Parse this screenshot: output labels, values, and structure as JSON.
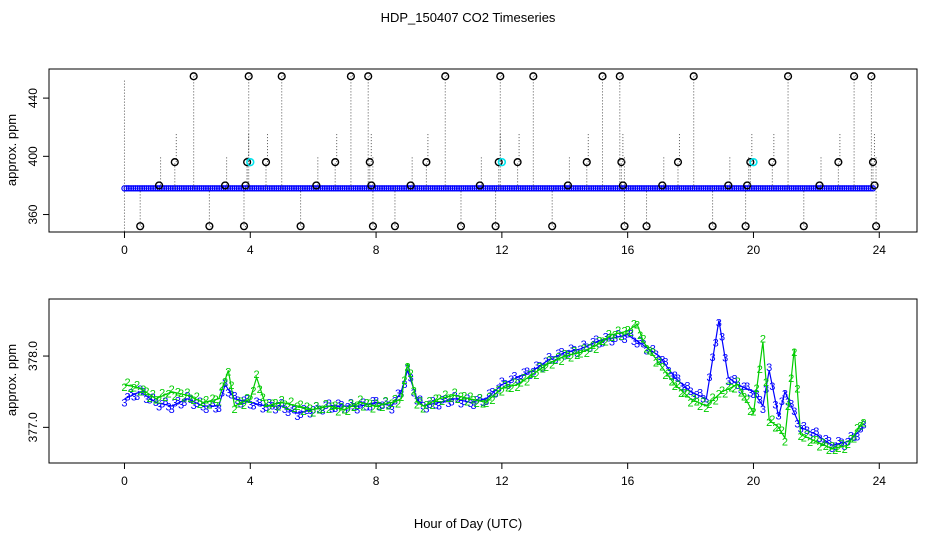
{
  "title": "HDP_150407  CO2 Timeseries",
  "xlabel": "Hour of Day (UTC)",
  "colors": {
    "blue": "#0000ff",
    "green": "#00cc00",
    "cyan": "#00e5ee",
    "black": "#000000",
    "dotted": "#555555"
  },
  "chart_data": [
    {
      "type": "scatter",
      "title": "HDP_150407  CO2 Timeseries",
      "ylabel": "approx. ppm",
      "xlim": [
        -2.4,
        25.2
      ],
      "ylim": [
        348,
        460
      ],
      "xticks": [
        0,
        4,
        8,
        12,
        16,
        20,
        24
      ],
      "yticks": [
        360,
        400,
        440
      ],
      "baseline": 378,
      "baseline_range": [
        0,
        23.8
      ],
      "outliers": [
        {
          "x": 0.5,
          "y": 352
        },
        {
          "x": 1.1,
          "y": 380
        },
        {
          "x": 1.6,
          "y": 396
        },
        {
          "x": 2.2,
          "y": 455
        },
        {
          "x": 2.7,
          "y": 352
        },
        {
          "x": 3.2,
          "y": 380
        },
        {
          "x": 3.8,
          "y": 352
        },
        {
          "x": 3.85,
          "y": 380
        },
        {
          "x": 3.9,
          "y": 396
        },
        {
          "x": 3.95,
          "y": 455
        },
        {
          "x": 4.5,
          "y": 396
        },
        {
          "x": 5.0,
          "y": 455
        },
        {
          "x": 5.6,
          "y": 352
        },
        {
          "x": 6.1,
          "y": 380
        },
        {
          "x": 6.7,
          "y": 396
        },
        {
          "x": 7.2,
          "y": 455
        },
        {
          "x": 7.75,
          "y": 455
        },
        {
          "x": 7.8,
          "y": 396
        },
        {
          "x": 7.85,
          "y": 380
        },
        {
          "x": 7.9,
          "y": 352
        },
        {
          "x": 8.6,
          "y": 352
        },
        {
          "x": 9.1,
          "y": 380
        },
        {
          "x": 9.6,
          "y": 396
        },
        {
          "x": 10.2,
          "y": 455
        },
        {
          "x": 10.7,
          "y": 352
        },
        {
          "x": 11.3,
          "y": 380
        },
        {
          "x": 11.8,
          "y": 352
        },
        {
          "x": 11.9,
          "y": 396
        },
        {
          "x": 11.95,
          "y": 455
        },
        {
          "x": 12.5,
          "y": 396
        },
        {
          "x": 13.0,
          "y": 455
        },
        {
          "x": 13.6,
          "y": 352
        },
        {
          "x": 14.1,
          "y": 380
        },
        {
          "x": 14.7,
          "y": 396
        },
        {
          "x": 15.2,
          "y": 455
        },
        {
          "x": 15.75,
          "y": 455
        },
        {
          "x": 15.8,
          "y": 396
        },
        {
          "x": 15.85,
          "y": 380
        },
        {
          "x": 15.9,
          "y": 352
        },
        {
          "x": 16.6,
          "y": 352
        },
        {
          "x": 17.1,
          "y": 380
        },
        {
          "x": 17.6,
          "y": 396
        },
        {
          "x": 18.1,
          "y": 455
        },
        {
          "x": 18.7,
          "y": 352
        },
        {
          "x": 19.2,
          "y": 380
        },
        {
          "x": 19.75,
          "y": 352
        },
        {
          "x": 19.8,
          "y": 380
        },
        {
          "x": 19.9,
          "y": 396
        },
        {
          "x": 20.6,
          "y": 396
        },
        {
          "x": 21.1,
          "y": 455
        },
        {
          "x": 21.6,
          "y": 352
        },
        {
          "x": 22.1,
          "y": 380
        },
        {
          "x": 22.7,
          "y": 396
        },
        {
          "x": 23.2,
          "y": 455
        },
        {
          "x": 23.75,
          "y": 455
        },
        {
          "x": 23.8,
          "y": 396
        },
        {
          "x": 23.85,
          "y": 380
        },
        {
          "x": 23.9,
          "y": 352
        }
      ],
      "cyan_points": [
        {
          "x": 4.0,
          "y": 396
        },
        {
          "x": 12.0,
          "y": 396
        },
        {
          "x": 20.0,
          "y": 396
        }
      ]
    },
    {
      "type": "scatter",
      "ylabel": "approx. ppm",
      "xlim": [
        -2.4,
        25.2
      ],
      "ylim": [
        376.5,
        378.8
      ],
      "xticks": [
        0,
        4,
        8,
        12,
        16,
        20,
        24
      ],
      "yticks": [
        377.0,
        378.0
      ],
      "series": [
        {
          "name": "3",
          "color": "#0000ff",
          "x": [
            0,
            0.5,
            1,
            1.5,
            2,
            2.5,
            3,
            3.2,
            3.5,
            4,
            4.5,
            5,
            5.5,
            6,
            6.5,
            7,
            7.5,
            8,
            8.5,
            8.8,
            9,
            9.3,
            9.5,
            10,
            10.5,
            11,
            11.5,
            12,
            12.5,
            13,
            13.5,
            14,
            14.5,
            15,
            15.5,
            16,
            16.5,
            17,
            17.5,
            18,
            18.5,
            18.9,
            19.2,
            19.5,
            20,
            20.3,
            20.5,
            20.8,
            21,
            21.5,
            22,
            22.5,
            23,
            23.5
          ],
          "values": [
            377.4,
            377.5,
            377.35,
            377.3,
            377.4,
            377.3,
            377.3,
            377.6,
            377.4,
            377.35,
            377.3,
            377.3,
            377.2,
            377.25,
            377.3,
            377.3,
            377.3,
            377.35,
            377.3,
            377.5,
            377.8,
            377.4,
            377.3,
            377.35,
            377.4,
            377.35,
            377.4,
            377.6,
            377.7,
            377.8,
            377.95,
            378.05,
            378.1,
            378.2,
            378.25,
            378.3,
            378.15,
            378.0,
            377.7,
            377.5,
            377.4,
            378.5,
            377.7,
            377.6,
            377.5,
            377.3,
            377.8,
            377.15,
            377.5,
            377.0,
            376.9,
            376.75,
            376.8,
            377.0
          ]
        },
        {
          "name": "2",
          "color": "#00cc00",
          "x": [
            0,
            0.5,
            1,
            1.5,
            2,
            2.5,
            3,
            3.3,
            3.5,
            4,
            4.2,
            4.5,
            5,
            5.5,
            6,
            6.5,
            7,
            7.5,
            8,
            8.5,
            8.8,
            9,
            9.3,
            9.5,
            10,
            10.5,
            11,
            11.5,
            12,
            12.5,
            13,
            13.5,
            14,
            14.5,
            15,
            15.5,
            16,
            16.3,
            16.5,
            17,
            17.5,
            18,
            18.5,
            19,
            19.5,
            20,
            20.3,
            20.5,
            20.8,
            21,
            21.3,
            21.5,
            22,
            22.5,
            23,
            23.5
          ],
          "values": [
            377.6,
            377.55,
            377.4,
            377.5,
            377.45,
            377.35,
            377.4,
            377.8,
            377.3,
            377.4,
            377.7,
            377.3,
            377.35,
            377.3,
            377.25,
            377.3,
            377.25,
            377.35,
            377.3,
            377.35,
            377.4,
            377.9,
            377.35,
            377.3,
            377.4,
            377.45,
            377.4,
            377.35,
            377.55,
            377.6,
            377.75,
            377.9,
            378.0,
            378.05,
            378.15,
            378.3,
            378.35,
            378.45,
            378.2,
            377.9,
            377.6,
            377.4,
            377.3,
            377.5,
            377.6,
            377.2,
            378.2,
            377.1,
            377.0,
            376.85,
            378.1,
            376.9,
            376.8,
            376.7,
            376.75,
            377.1
          ]
        }
      ]
    }
  ]
}
